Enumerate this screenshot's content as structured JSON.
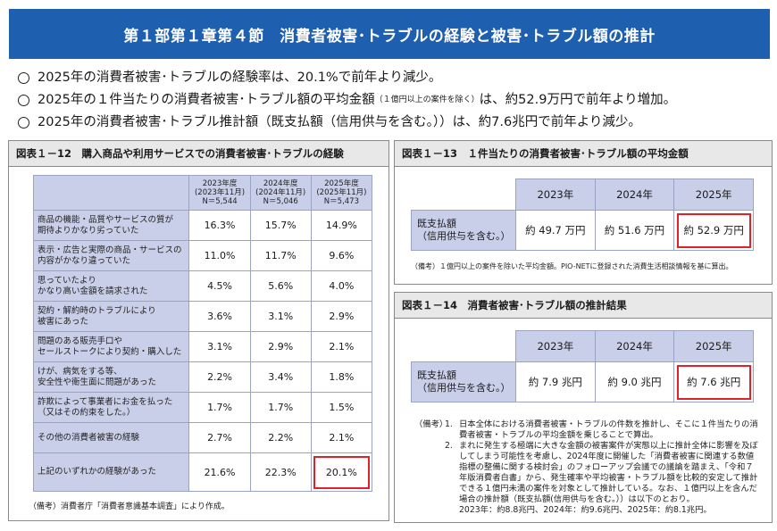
{
  "header": {
    "title": "第１部第１章第４節　消費者被害･トラブルの経験と被害･トラブル額の推計"
  },
  "summary": [
    {
      "text": "2025年の消費者被害･トラブルの経験率は、20.1%で前年より減少。",
      "small": "",
      "tail": ""
    },
    {
      "text": "2025年の１件当たりの消費者被害･トラブル額の平均金額",
      "small": "（１億円以上の案件を除く）",
      "tail": "は、約52.9万円で前年より増加。"
    },
    {
      "text": "2025年の消費者被害･トラブル推計額（既支払額（信用供与を含む。））は、約7.6兆円で前年より減少。",
      "small": "",
      "tail": ""
    }
  ],
  "fig12": {
    "title": "図表１－12　購入商品や利用サービスでの消費者被害･トラブルの経験",
    "columns": [
      {
        "l1": "2023年度",
        "l2": "(2023年11月)",
        "l3": "N＝5,544"
      },
      {
        "l1": "2024年度",
        "l2": "(2024年11月)",
        "l3": "N＝5,046"
      },
      {
        "l1": "2025年度",
        "l2": "(2025年11月)",
        "l3": "N＝5,473"
      }
    ],
    "rows": [
      {
        "l1": "商品の機能・品質やサービスの質が",
        "l2": "期待よりかなり劣っていた",
        "v": [
          "16.3%",
          "15.7%",
          "14.9%"
        ]
      },
      {
        "l1": "表示・広告と実際の商品・サービスの",
        "l2": "内容がかなり違っていた",
        "v": [
          "11.0%",
          "11.7%",
          "9.6%"
        ]
      },
      {
        "l1": "思っていたより",
        "l2": "かなり高い金額を請求された",
        "v": [
          "4.5%",
          "5.6%",
          "4.0%"
        ]
      },
      {
        "l1": "契約・解約時のトラブルにより",
        "l2": "被害にあった",
        "v": [
          "3.6%",
          "3.1%",
          "2.9%"
        ]
      },
      {
        "l1": "問題のある販売手口や",
        "l2": "セールストークにより契約・購入した",
        "v": [
          "3.1%",
          "2.9%",
          "2.1%"
        ]
      },
      {
        "l1": "けが、病気をする等、",
        "l2": "安全性や衛生面に問題があった",
        "v": [
          "2.2%",
          "3.4%",
          "1.8%"
        ]
      },
      {
        "l1": "詐欺によって事業者にお金を払った",
        "l2": "（又はその約束をした。）",
        "v": [
          "1.7%",
          "1.7%",
          "1.5%"
        ]
      },
      {
        "l1": "その他の消費者被害の経験",
        "l2": "",
        "v": [
          "2.7%",
          "2.2%",
          "2.1%"
        ]
      },
      {
        "l1": "上記のいずれかの経験があった",
        "l2": "",
        "v": [
          "21.6%",
          "22.3%",
          "20.1%"
        ]
      }
    ],
    "note": "（備考）消費者庁「消費者意識基本調査」により作成。"
  },
  "fig13": {
    "title": "図表１－13　１件当たりの消費者被害･トラブル額の平均金額",
    "years": [
      "2023年",
      "2024年",
      "2025年"
    ],
    "label1": "既支払額",
    "label2": "（信用供与を含む。）",
    "values": [
      "約 49.7 万円",
      "約 51.6 万円",
      "約 52.9 万円"
    ],
    "note": "（備考）１億円以上の案件を除いた平均金額。PIO-NETに登録された消費生活相談情報を基に算出。"
  },
  "fig14": {
    "title": "図表１－14　消費者被害･トラブル額の推計結果",
    "years": [
      "2023年",
      "2024年",
      "2025年"
    ],
    "label1": "既支払額",
    "label2": "（信用供与を含む。）",
    "values": [
      "約 7.9 兆円",
      "約 9.0 兆円",
      "約 7.6 兆円"
    ],
    "notes_key": "（備考）",
    "note1": "日本全体における消費者被害・トラブルの件数を推計し、そこに１件当たりの消費者被害・トラブルの平均金額を乗じることで算出。",
    "note2": "まれに発生する極端に大きな金額の被害案件が実態以上に推計全体に影響を及ぼしてしまう可能性を考慮し、2024年度に開催した「消費者被害に関連する数値指標の整備に関する検討会」のフォローアップ会議での議論を踏まえ、「令和７年版消費者白書」から、発生確率や平均被害・トラブル額を比較的安定して推計できる１億円未満の案件を対象として推計している。なお、１億円以上を含んだ場合の推計額（既支払額(信用供与を含む。））は以下のとおり。",
    "note3": "2023年：約8.8兆円、2024年：約9.6兆円、2025年：約8.1兆円。"
  }
}
